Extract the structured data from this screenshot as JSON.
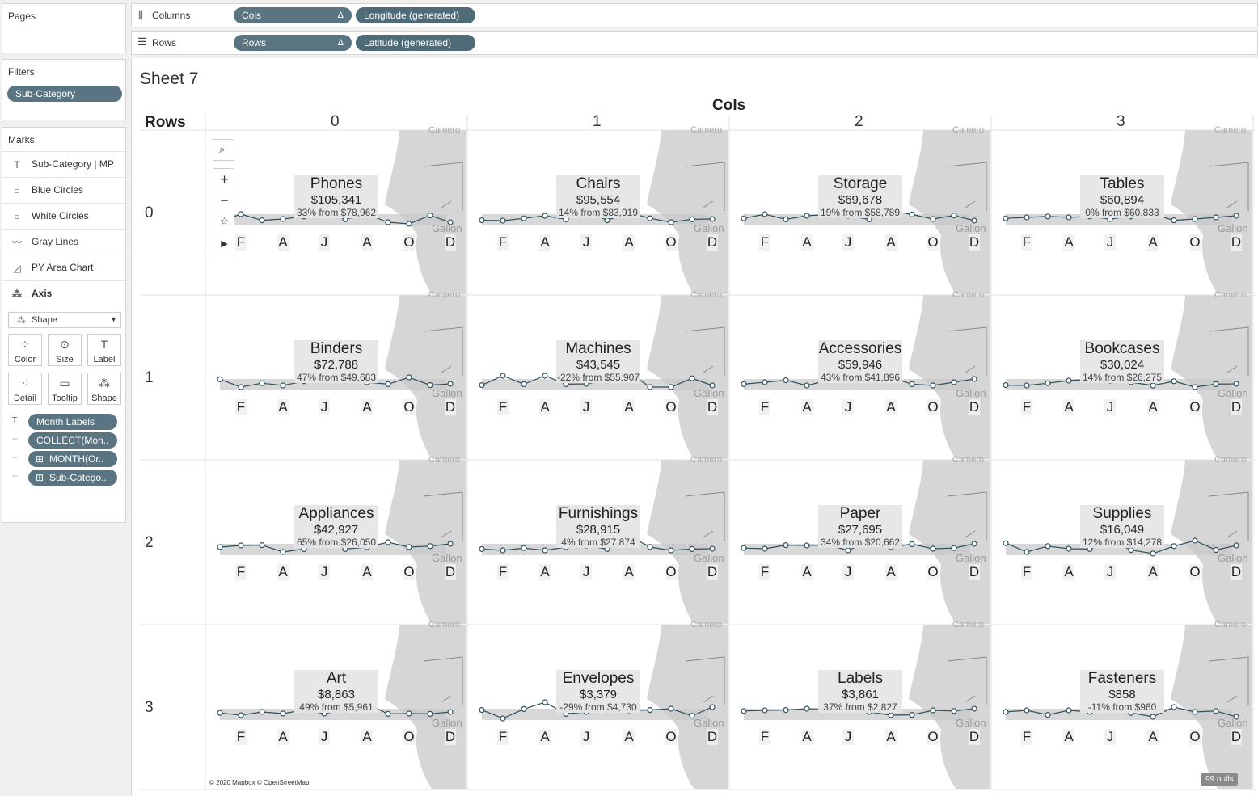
{
  "pages": {
    "title": "Pages"
  },
  "filters": {
    "title": "Filters",
    "pills": [
      "Sub-Category"
    ]
  },
  "shelves": {
    "columns": {
      "label": "Columns",
      "pills": [
        {
          "text": "Cols",
          "delta": "Δ"
        },
        {
          "text": "Longitude (generated)"
        }
      ]
    },
    "rows": {
      "label": "Rows",
      "pills": [
        {
          "text": "Rows",
          "delta": "Δ"
        },
        {
          "text": "Latitude (generated)"
        }
      ]
    }
  },
  "marks": {
    "title": "Marks",
    "layers": [
      {
        "label": "Sub-Category | MP",
        "icon": "T"
      },
      {
        "label": "Blue Circles",
        "icon": "○"
      },
      {
        "label": "White Circles",
        "icon": "○"
      },
      {
        "label": "Gray Lines",
        "icon": "〰"
      },
      {
        "label": "PY Area Chart",
        "icon": "◿"
      },
      {
        "label": "Axis",
        "icon": "⁂"
      }
    ],
    "mark_type": "Shape",
    "cards": [
      "Color",
      "Size",
      "Label",
      "Detail",
      "Tooltip",
      "Shape"
    ],
    "fields": [
      {
        "label": "Month Labels",
        "icon": "T"
      },
      {
        "label": "COLLECT(Mon..",
        "icon": "⋯"
      },
      {
        "label": "MONTH(Or..",
        "icon": "⋯"
      },
      {
        "label": "Sub-Catego..",
        "icon": "⋯"
      }
    ]
  },
  "view": {
    "sheet_title": "Sheet 7",
    "cols_header": "Cols",
    "rows_header": "Rows",
    "col_numbers": [
      "0",
      "1",
      "2",
      "3"
    ],
    "row_numbers": [
      "0",
      "1",
      "2",
      "3"
    ],
    "month_labels": [
      "F",
      "A",
      "J",
      "A",
      "O",
      "D"
    ],
    "map_text": "Gallon",
    "map_text_top": "Camero",
    "attribution": "© 2020 Mapbox © OpenStreetMap",
    "nulls": "99 nulls",
    "tiles": [
      {
        "name": "Phones",
        "value": "$105,341",
        "change": "33% from $78,962"
      },
      {
        "name": "Chairs",
        "value": "$95,554",
        "change": "14% from $83,919"
      },
      {
        "name": "Storage",
        "value": "$69,678",
        "change": "19% from $58,789"
      },
      {
        "name": "Tables",
        "value": "$60,894",
        "change": "0% from $60,833"
      },
      {
        "name": "Binders",
        "value": "$72,788",
        "change": "47% from $49,683"
      },
      {
        "name": "Machines",
        "value": "$43,545",
        "change": "-22% from $55,907"
      },
      {
        "name": "Accessories",
        "value": "$59,946",
        "change": "43% from $41,896"
      },
      {
        "name": "Bookcases",
        "value": "$30,024",
        "change": "14% from $26,275"
      },
      {
        "name": "Appliances",
        "value": "$42,927",
        "change": "65% from $26,050"
      },
      {
        "name": "Furnishings",
        "value": "$28,915",
        "change": "4% from $27,874"
      },
      {
        "name": "Paper",
        "value": "$27,695",
        "change": "34% from $20,662"
      },
      {
        "name": "Supplies",
        "value": "$16,049",
        "change": "12% from $14,278"
      },
      {
        "name": "Art",
        "value": "$8,863",
        "change": "49% from $5,961"
      },
      {
        "name": "Envelopes",
        "value": "$3,379",
        "change": "-29% from $4,730"
      },
      {
        "name": "Labels",
        "value": "$3,861",
        "change": "37% from $2,827"
      },
      {
        "name": "Fasteners",
        "value": "$858",
        "change": "-11% from $960"
      }
    ]
  },
  "colors": {
    "pill": "#5a7581",
    "line": "#2f4f5c",
    "map_land": "#d6d6d6",
    "area": "#c8c8c8"
  }
}
